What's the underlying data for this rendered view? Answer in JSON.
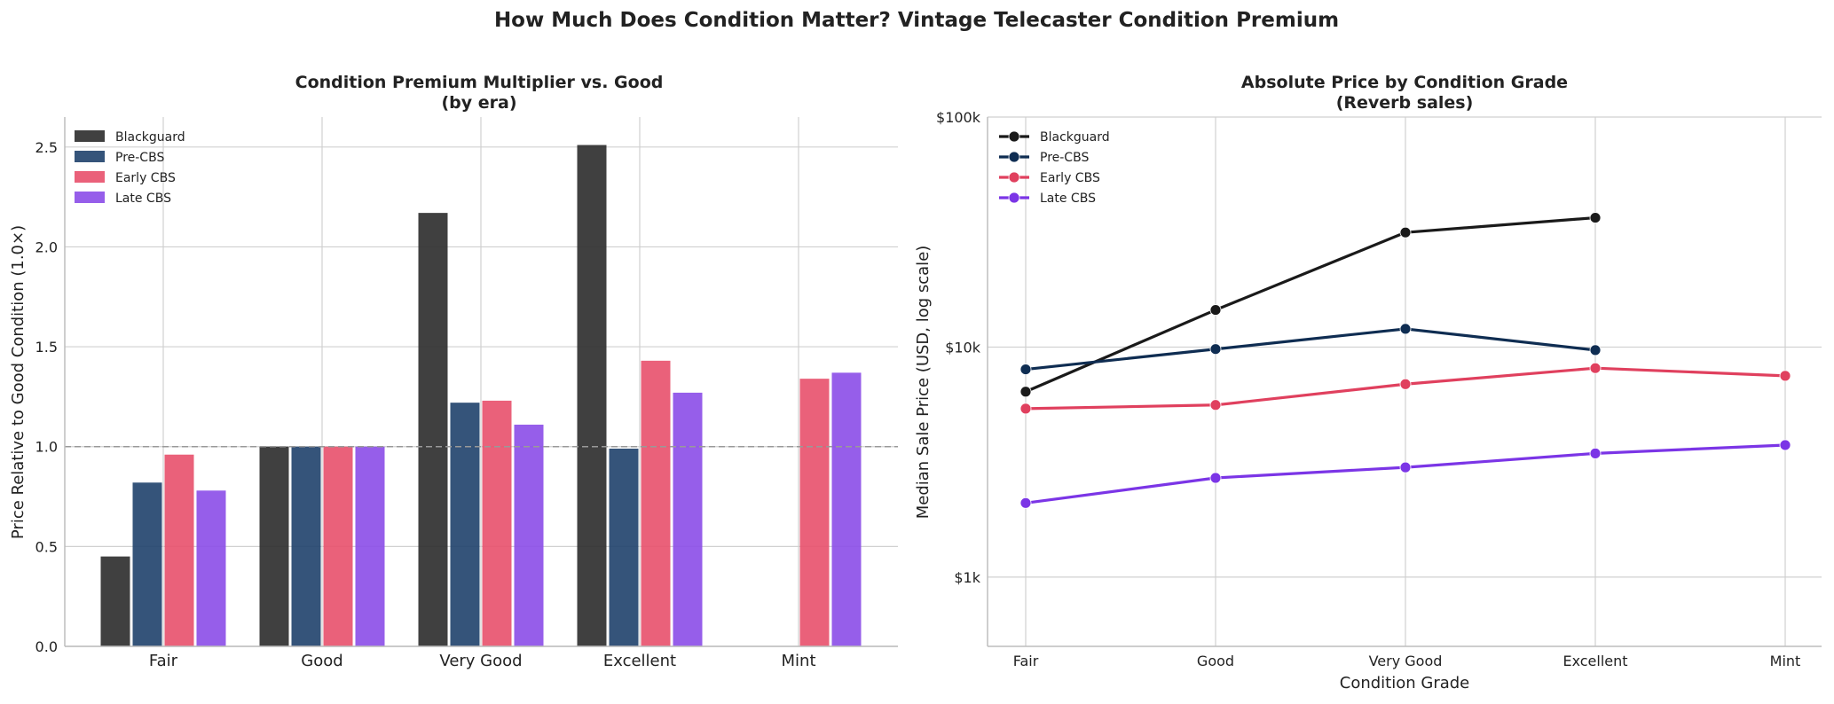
{
  "chart_data": [
    {
      "type": "bar",
      "suptitle": "How Much Does Condition Matter? Vintage Telecaster Condition Premium",
      "title_line1": "Condition Premium Multiplier vs. Good",
      "title_line2": "(by era)",
      "xlabel": "",
      "ylabel": "Price Relative to Good Condition (1.0×)",
      "ylim": [
        0,
        2.65
      ],
      "yticks": [
        0.0,
        0.5,
        1.0,
        1.5,
        2.0,
        2.5
      ],
      "ytick_labels": [
        "0.0",
        "0.5",
        "1.0",
        "1.5",
        "2.0",
        "2.5"
      ],
      "reference_line": 1.0,
      "legend_position": "top-left",
      "categories": [
        "Fair",
        "Good",
        "Very Good",
        "Excellent",
        "Mint"
      ],
      "series": [
        {
          "name": "Blackguard",
          "color": "#2b2b2b",
          "values": [
            0.45,
            1.0,
            2.17,
            2.51,
            null
          ]
        },
        {
          "name": "Pre-CBS",
          "color": "#1f416b",
          "values": [
            0.82,
            1.0,
            1.22,
            0.99,
            null
          ]
        },
        {
          "name": "Early CBS",
          "color": "#e8506b",
          "values": [
            0.96,
            1.0,
            1.23,
            1.43,
            1.34
          ]
        },
        {
          "name": "Late CBS",
          "color": "#8b4de8",
          "values": [
            0.78,
            1.0,
            1.11,
            1.27,
            1.37
          ]
        }
      ]
    },
    {
      "type": "line",
      "title_line1": "Absolute Price by Condition Grade",
      "title_line2": "(Reverb sales)",
      "xlabel": "Condition Grade",
      "ylabel": "Median Sale Price (USD, log scale)",
      "yscale": "log",
      "ylim": [
        500,
        100000
      ],
      "yticks": [
        1000,
        10000,
        100000
      ],
      "ytick_labels": [
        "$1k",
        "$10k",
        "$100k"
      ],
      "legend_position": "top-left",
      "categories": [
        "Fair",
        "Good",
        "Very Good",
        "Excellent",
        "Mint"
      ],
      "series": [
        {
          "name": "Blackguard",
          "color": "#1a1a1a",
          "values": [
            6400,
            14500,
            31500,
            36500,
            null
          ]
        },
        {
          "name": "Pre-CBS",
          "color": "#0f2d52",
          "values": [
            8000,
            9800,
            12000,
            9700,
            null
          ]
        },
        {
          "name": "Early CBS",
          "color": "#e0405e",
          "values": [
            5400,
            5600,
            6900,
            8100,
            7500
          ]
        },
        {
          "name": "Late CBS",
          "color": "#7b35e6",
          "values": [
            2100,
            2700,
            3000,
            3450,
            3750
          ]
        }
      ]
    }
  ]
}
